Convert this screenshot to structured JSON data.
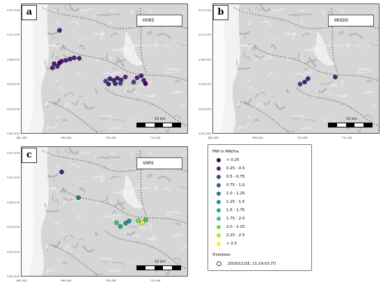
{
  "panels": [
    {
      "label": "a",
      "sensor": "HSRS"
    },
    {
      "label": "b",
      "sensor": "MODIS"
    },
    {
      "label": "c",
      "sensor": "VIIRS"
    }
  ],
  "axes": {
    "y_ticks": [
      "3,377,530",
      "3,371,530",
      "3,365,530",
      "3,359,530",
      "3,353,530",
      "3,347,530"
    ],
    "x_ticks": [
      "682,428",
      "693,428",
      "704,428",
      "715,428"
    ]
  },
  "scale_label": "10 km",
  "legend": {
    "title": "FRP in MW/ha",
    "items": [
      {
        "label": "< 0.25",
        "color": "#440154"
      },
      {
        "label": "0.25 - 0.5",
        "color": "#482475"
      },
      {
        "label": "0.5 - 0.75",
        "color": "#414487"
      },
      {
        "label": "0.75 - 1.0",
        "color": "#355f8d"
      },
      {
        "label": "1.0 - 1.25",
        "color": "#2a788e"
      },
      {
        "label": "1.25 - 1.5",
        "color": "#21918c"
      },
      {
        "label": "1.5 - 1.75",
        "color": "#22a884"
      },
      {
        "label": "1.75 - 2.0",
        "color": "#44bf70"
      },
      {
        "label": "2.0 - 2.25",
        "color": "#7ad151"
      },
      {
        "label": "2.25 - 2.5",
        "color": "#bddf26"
      },
      {
        "label": "> 2.5",
        "color": "#fde725"
      }
    ],
    "overpass_title": "Overpass",
    "overpass_value": "2016/11/25, 11:19:03 (T)"
  },
  "hotspots": {
    "a": [
      {
        "x": 691.5,
        "y": 3372.2,
        "c": 1
      },
      {
        "x": 690.2,
        "y": 3364.2,
        "c": 1
      },
      {
        "x": 691.0,
        "y": 3363.6,
        "c": 1
      },
      {
        "x": 692.0,
        "y": 3364.8,
        "c": 1
      },
      {
        "x": 693.0,
        "y": 3365.0,
        "c": 1
      },
      {
        "x": 694.0,
        "y": 3365.3,
        "c": 1
      },
      {
        "x": 695.0,
        "y": 3365.6,
        "c": 1
      },
      {
        "x": 689.8,
        "y": 3363.2,
        "c": 1
      },
      {
        "x": 696.2,
        "y": 3365.5,
        "c": 1
      },
      {
        "x": 691.5,
        "y": 3364.4,
        "c": 0
      },
      {
        "x": 702.5,
        "y": 3360.0,
        "c": 2
      },
      {
        "x": 703.5,
        "y": 3360.6,
        "c": 1
      },
      {
        "x": 704.4,
        "y": 3360.2,
        "c": 1
      },
      {
        "x": 705.3,
        "y": 3360.7,
        "c": 1
      },
      {
        "x": 706.2,
        "y": 3360.3,
        "c": 1
      },
      {
        "x": 707.2,
        "y": 3361.0,
        "c": 1
      },
      {
        "x": 704.8,
        "y": 3359.4,
        "c": 1
      },
      {
        "x": 706.0,
        "y": 3359.5,
        "c": 2
      },
      {
        "x": 703.2,
        "y": 3359.3,
        "c": 1
      },
      {
        "x": 710.0,
        "y": 3360.8,
        "c": 1
      },
      {
        "x": 711.0,
        "y": 3361.3,
        "c": 1
      },
      {
        "x": 711.6,
        "y": 3360.2,
        "c": 1
      },
      {
        "x": 709.2,
        "y": 3359.8,
        "c": 2
      },
      {
        "x": 712.0,
        "y": 3359.4,
        "c": 0
      }
    ],
    "b": [
      {
        "x": 704.3,
        "y": 3359.8,
        "c": 1
      },
      {
        "x": 705.1,
        "y": 3360.6,
        "c": 1
      },
      {
        "x": 703.2,
        "y": 3359.3,
        "c": 2
      },
      {
        "x": 711.6,
        "y": 3361.0,
        "c": 1
      }
    ],
    "c": [
      {
        "x": 692.0,
        "y": 3372.5,
        "c": 1
      },
      {
        "x": 696.0,
        "y": 3366.3,
        "c": 4
      },
      {
        "x": 705.1,
        "y": 3360.3,
        "c": 7
      },
      {
        "x": 706.0,
        "y": 3359.4,
        "c": 6
      },
      {
        "x": 707.3,
        "y": 3360.2,
        "c": 5
      },
      {
        "x": 708.1,
        "y": 3360.7,
        "c": 5
      },
      {
        "x": 710.3,
        "y": 3360.8,
        "c": 8
      },
      {
        "x": 711.3,
        "y": 3360.3,
        "c": 10
      },
      {
        "x": 712.1,
        "y": 3361.0,
        "c": 7
      }
    ]
  }
}
